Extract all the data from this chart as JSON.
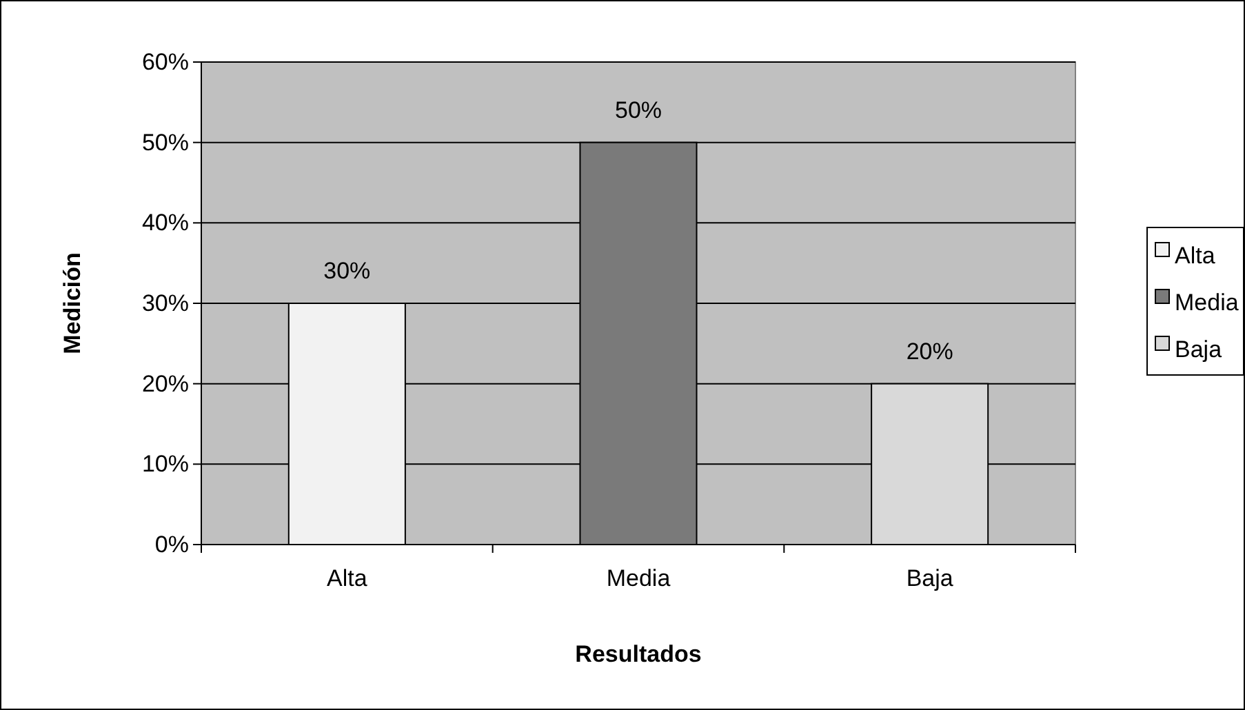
{
  "chart_data": {
    "type": "bar",
    "xlabel": "Resultados",
    "ylabel": "Medición",
    "categories": [
      "Alta",
      "Media",
      "Baja"
    ],
    "series": [
      {
        "name": "Alta",
        "color": "#f2f2f2",
        "values": [
          30,
          null,
          null
        ],
        "value_labels": [
          "30%",
          null,
          null
        ]
      },
      {
        "name": "Media",
        "color": "#7a7a7a",
        "values": [
          null,
          50,
          null
        ],
        "value_labels": [
          null,
          "50%",
          null
        ]
      },
      {
        "name": "Baja",
        "color": "#d9d9d9",
        "values": [
          null,
          null,
          20
        ],
        "value_labels": [
          null,
          null,
          "20%"
        ]
      }
    ],
    "ylim": [
      0,
      60
    ],
    "yticks": [
      {
        "value": 0,
        "label": "0%"
      },
      {
        "value": 10,
        "label": "10%"
      },
      {
        "value": 20,
        "label": "20%"
      },
      {
        "value": 30,
        "label": "30%"
      },
      {
        "value": 40,
        "label": "40%"
      },
      {
        "value": 50,
        "label": "50%"
      },
      {
        "value": 60,
        "label": "60%"
      }
    ],
    "grid": "y",
    "legend": "right"
  }
}
